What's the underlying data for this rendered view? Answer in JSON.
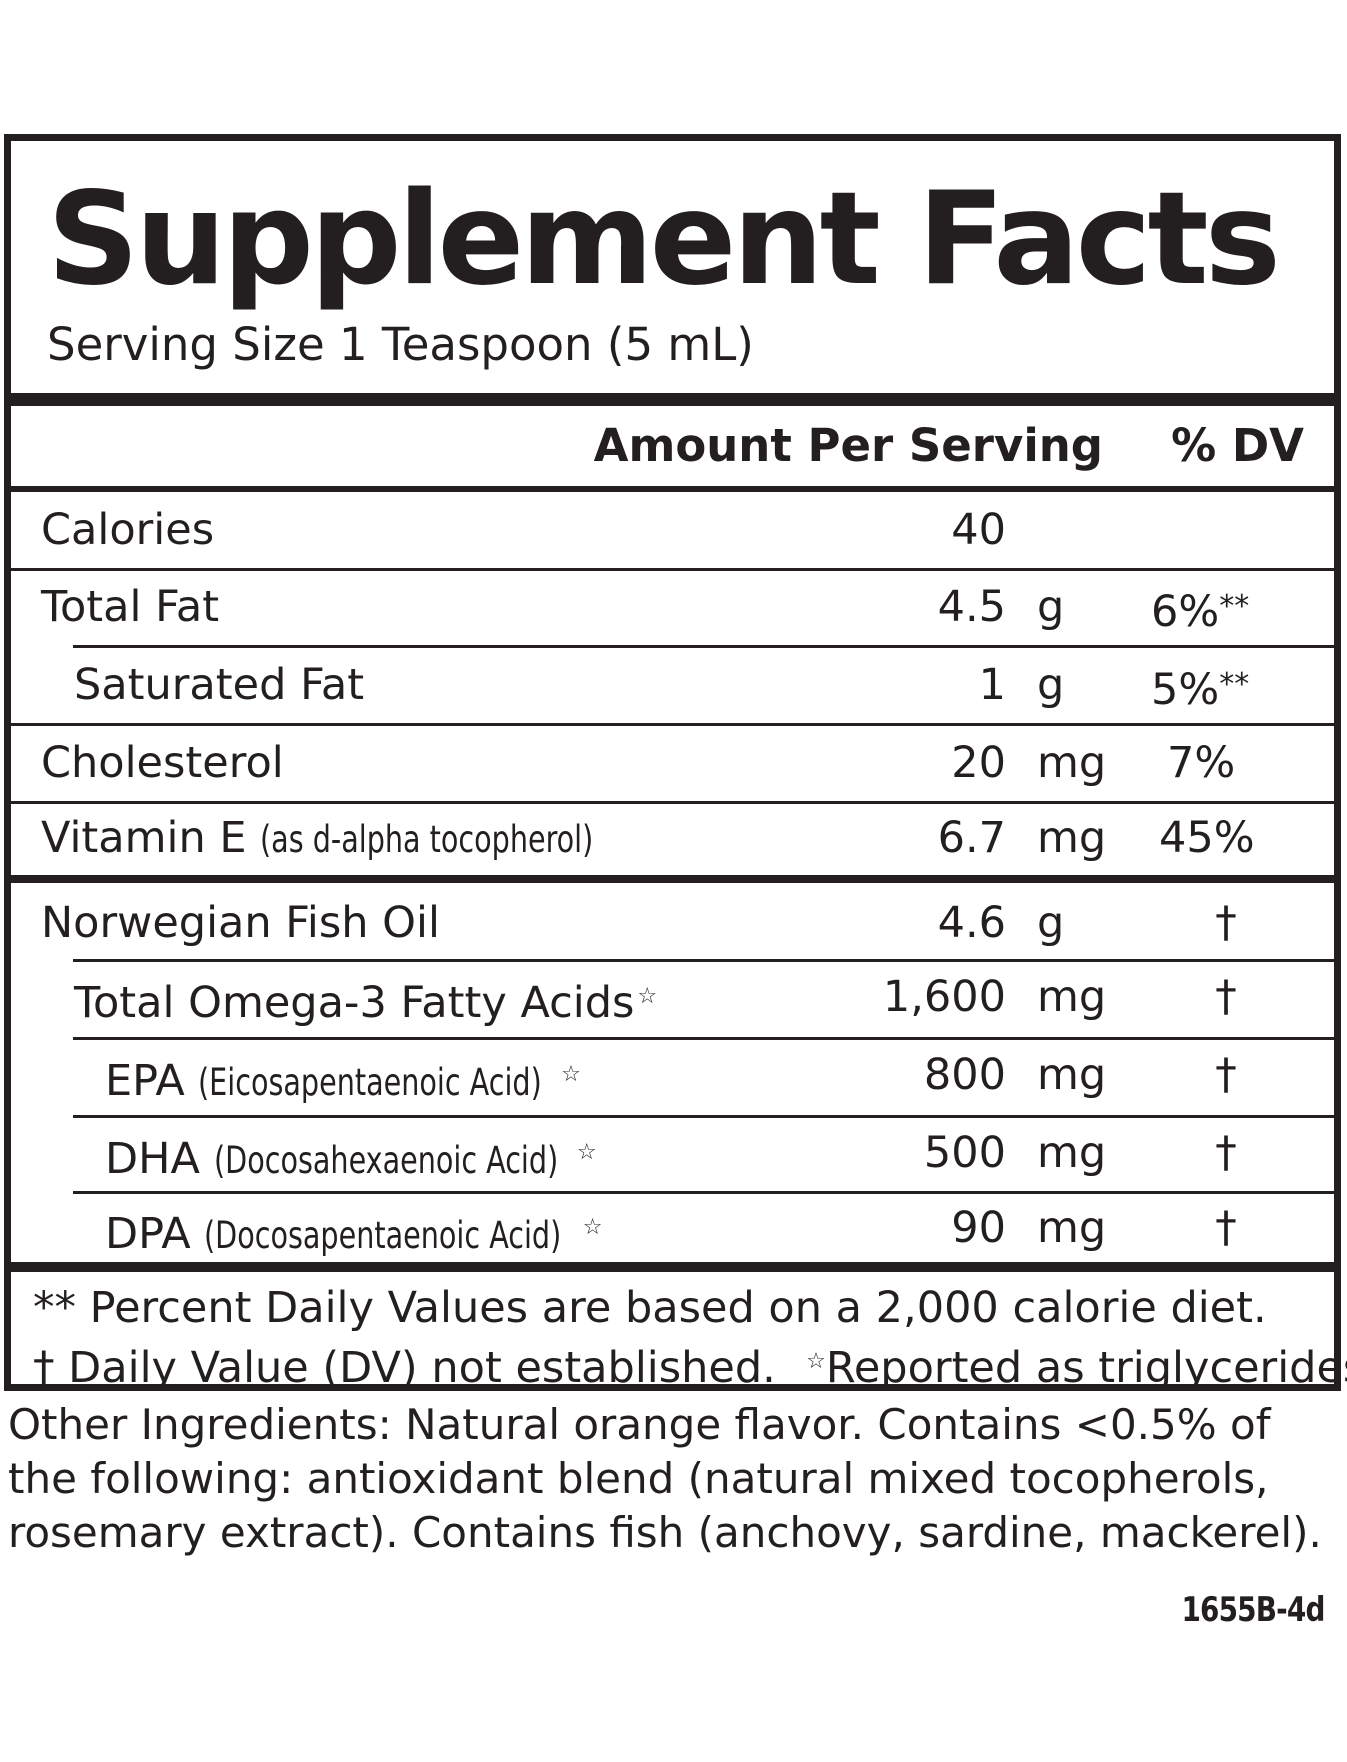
{
  "title": "Supplement Facts",
  "serving_size": "Serving Size 1 Teaspoon (5 mL)",
  "header": {
    "amount": "Amount Per Serving",
    "dv": "% DV"
  },
  "rows": [
    {
      "name": "Calories",
      "note": "",
      "star": "",
      "amount": "40",
      "unit": "",
      "dv": "",
      "dv_mark": ""
    },
    {
      "name": "Total Fat",
      "note": "",
      "star": "",
      "amount": "4.5",
      "unit": "g",
      "dv": "6%",
      "dv_mark": "**"
    },
    {
      "name": "Saturated Fat",
      "note": "",
      "star": "",
      "amount": "1",
      "unit": "g",
      "dv": "5%",
      "dv_mark": "**"
    },
    {
      "name": "Cholesterol",
      "note": "",
      "star": "",
      "amount": "20",
      "unit": "mg",
      "dv": "7%",
      "dv_mark": ""
    },
    {
      "name": "Vitamin E ",
      "note": "(as d-alpha tocopherol)",
      "star": "",
      "amount": "6.7",
      "unit": "mg",
      "dv": "45%",
      "dv_mark": ""
    },
    {
      "name": "Norwegian Fish Oil",
      "note": "",
      "star": "",
      "amount": "4.6",
      "unit": "g",
      "dv": "†",
      "dv_mark": ""
    },
    {
      "name": "Total Omega-3 Fatty Acids",
      "note": "",
      "star": "☆",
      "amount": "1,600",
      "unit": "mg",
      "dv": "†",
      "dv_mark": ""
    },
    {
      "name": "EPA ",
      "note": "(Eicosapentaenoic Acid)",
      "star": "☆",
      "amount": "800",
      "unit": "mg",
      "dv": "†",
      "dv_mark": ""
    },
    {
      "name": "DHA ",
      "note": "(Docosahexaenoic Acid)",
      "star": "☆",
      "amount": "500",
      "unit": "mg",
      "dv": "†",
      "dv_mark": ""
    },
    {
      "name": "DPA ",
      "note": "(Docosapentaenoic Acid)",
      "star": "☆",
      "amount": "90",
      "unit": "mg",
      "dv": "†",
      "dv_mark": ""
    }
  ],
  "footnotes": {
    "line1": "** Percent Daily Values are based on a 2,000 calorie diet.",
    "line2_dagger": "† Daily Value (DV) not established.",
    "line2_star": "☆",
    "line2_rest": "Reported as triglycerides."
  },
  "other_ingredients": "Other Ingredients: Natural orange flavor. Contains <0.5% of the following: antioxidant blend (natural mixed tocopherols, rosemary extract). Contains fish (anchovy, sardine, mackerel).",
  "product_code": "1655B-4d",
  "colors": {
    "ink": "#231f20",
    "background": "#ffffff"
  }
}
